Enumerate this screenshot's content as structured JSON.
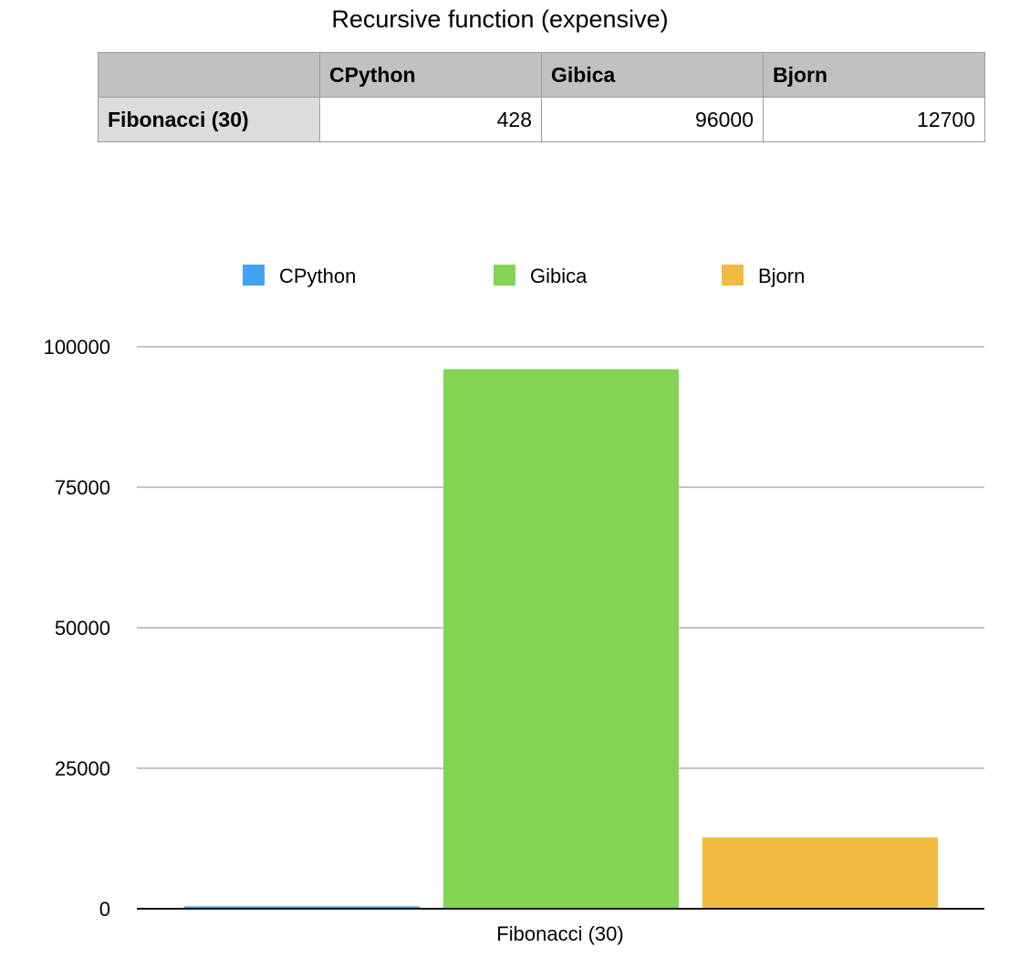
{
  "table": {
    "header": [
      "",
      "CPython",
      "Gibica",
      "Bjorn"
    ],
    "rows": [
      {
        "label": "Fibonacci (30)",
        "values": [
          "428",
          "96000",
          "12700"
        ]
      }
    ]
  },
  "chart_data": {
    "type": "bar",
    "title": "Recursive function (expensive)",
    "categories": [
      "Fibonacci (30)"
    ],
    "series": [
      {
        "name": "CPython",
        "values": [
          428
        ],
        "color": "#44a2f4"
      },
      {
        "name": "Gibica",
        "values": [
          96000
        ],
        "color": "#83d453"
      },
      {
        "name": "Bjorn",
        "values": [
          12700
        ],
        "color": "#f0bb40"
      }
    ],
    "xlabel": "",
    "ylabel": "",
    "ylim": [
      0,
      100000
    ],
    "yticks": [
      0,
      25000,
      50000,
      75000,
      100000
    ],
    "grid": true,
    "legend": "top"
  }
}
